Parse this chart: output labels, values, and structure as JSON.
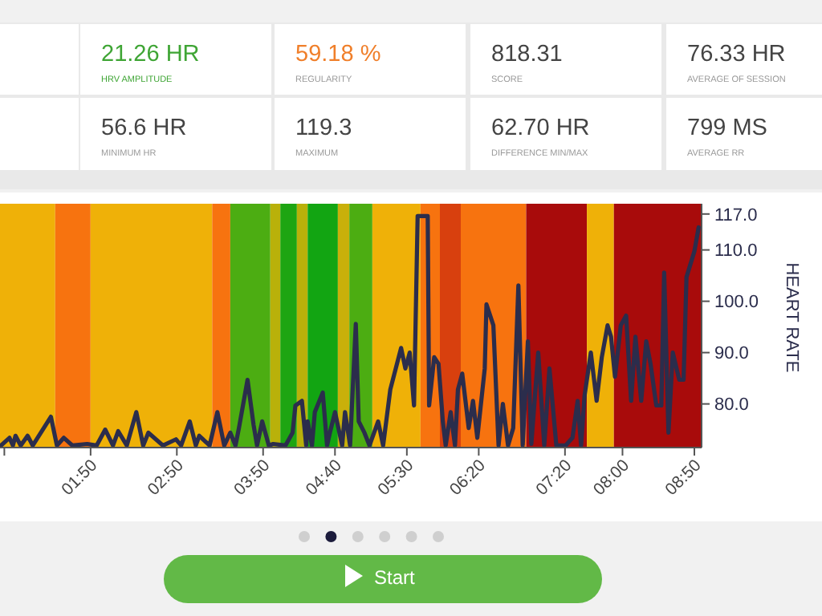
{
  "chart_data": {
    "type": "line",
    "ylabel": "HEART RATE",
    "annotations": [
      "21.26 HR",
      "HRV AMPLITUDE",
      "59.18 %",
      "REGULARITY",
      "818.31",
      "SCORE",
      "76.33 HR",
      "AVERAGE OF SESSION",
      "56.6 HR",
      "MINIMUM HR",
      "119.3",
      "MAXIMUM",
      "62.70 HR",
      "DIFFERENCE MIN/MAX",
      "799 MS",
      "AVERAGE RR",
      "Start"
    ],
    "xlim": [
      0.783,
      8.917
    ],
    "xticks": [
      {
        "value": 0.8333,
        "label": null
      },
      {
        "value": 1.8333,
        "label": "01:50"
      },
      {
        "value": 2.8333,
        "label": "02:50"
      },
      {
        "value": 3.8333,
        "label": "03:50"
      },
      {
        "value": 4.6667,
        "label": "04:40"
      },
      {
        "value": 5.5,
        "label": "05:30"
      },
      {
        "value": 6.3333,
        "label": "06:20"
      },
      {
        "value": 7.3333,
        "label": "07:20"
      },
      {
        "value": 8,
        "label": "08:00"
      },
      {
        "value": 8.8333,
        "label": "08:50"
      }
    ],
    "ylim": [
      71.5,
      119
    ],
    "yticks": [
      {
        "value": 80,
        "label": "80.0"
      },
      {
        "value": 90,
        "label": "90.0"
      },
      {
        "value": 100,
        "label": "100.0"
      },
      {
        "value": 110,
        "label": "110.0"
      },
      {
        "value": 117,
        "label": "117.0"
      }
    ],
    "grid": false,
    "marker": "none",
    "line_style": "solid",
    "bands": [
      {
        "axis": "x",
        "from": 0.783,
        "to": 1.423,
        "color": "#efb108"
      },
      {
        "axis": "x",
        "from": 1.423,
        "to": 1.833,
        "color": "#f7730f"
      },
      {
        "axis": "x",
        "from": 1.833,
        "to": 3.243,
        "color": "#efb108"
      },
      {
        "axis": "x",
        "from": 3.243,
        "to": 3.453,
        "color": "#f7730f"
      },
      {
        "axis": "x",
        "from": 3.453,
        "to": 3.917,
        "color": "#4cad12"
      },
      {
        "axis": "x",
        "from": 3.917,
        "to": 4.033,
        "color": "#b9b10a"
      },
      {
        "axis": "x",
        "from": 4.033,
        "to": 4.225,
        "color": "#1ea512"
      },
      {
        "axis": "x",
        "from": 4.225,
        "to": 4.35,
        "color": "#b9b10a"
      },
      {
        "axis": "x",
        "from": 4.35,
        "to": 4.7,
        "color": "#12a512"
      },
      {
        "axis": "x",
        "from": 4.7,
        "to": 4.833,
        "color": "#c9b00a"
      },
      {
        "axis": "x",
        "from": 4.833,
        "to": 5.1,
        "color": "#4cad12"
      },
      {
        "axis": "x",
        "from": 5.1,
        "to": 5.658,
        "color": "#efb108"
      },
      {
        "axis": "x",
        "from": 5.658,
        "to": 5.883,
        "color": "#f7730f"
      },
      {
        "axis": "x",
        "from": 5.883,
        "to": 6.125,
        "color": "#d8400e"
      },
      {
        "axis": "x",
        "from": 6.125,
        "to": 6.883,
        "color": "#f7730f"
      },
      {
        "axis": "x",
        "from": 6.883,
        "to": 7.587,
        "color": "#a80b0b"
      },
      {
        "axis": "x",
        "from": 7.587,
        "to": 7.9,
        "color": "#efb108"
      },
      {
        "axis": "x",
        "from": 7.9,
        "to": 8.917,
        "color": "#a80b0b"
      }
    ],
    "series": [
      {
        "color": "#2b2d4c",
        "x": [
          0.793,
          0.893,
          0.933,
          0.963,
          1.023,
          1.103,
          1.163,
          1.373,
          1.443,
          1.523,
          1.623,
          1.793,
          1.903,
          2.003,
          2.093,
          2.153,
          2.253,
          2.363,
          2.443,
          2.503,
          2.673,
          2.823,
          2.883,
          2.983,
          3.053,
          3.093,
          3.213,
          3.303,
          3.383,
          3.453,
          3.513,
          3.553,
          3.653,
          3.723,
          3.763,
          3.823,
          3.9,
          3.95,
          4.092,
          4.175,
          4.208,
          4.283,
          4.333,
          4.35,
          4.4,
          4.433,
          4.525,
          4.575,
          4.608,
          4.667,
          4.75,
          4.783,
          4.842,
          4.908,
          4.942,
          5.008,
          5.067,
          5.167,
          5.225,
          5.308,
          5.433,
          5.483,
          5.533,
          5.583,
          5.625,
          5.742,
          5.758,
          5.817,
          5.867,
          5.917,
          5.95,
          6.008,
          6.058,
          6.092,
          6.142,
          6.217,
          6.267,
          6.317,
          6.403,
          6.423,
          6.503,
          6.563,
          6.613,
          6.673,
          6.733,
          6.793,
          6.843,
          6.903,
          6.943,
          7.023,
          7.093,
          7.153,
          7.233,
          7.34,
          7.42,
          7.48,
          7.52,
          7.56,
          7.633,
          7.7,
          7.76,
          7.827,
          7.867,
          7.913,
          7.98,
          8.042,
          8.1,
          8.15,
          8.217,
          8.275,
          8.325,
          8.392,
          8.45,
          8.483,
          8.533,
          8.583,
          8.658,
          8.708,
          8.742,
          8.833,
          8.883
        ],
        "values": [
          71.9,
          73.4,
          71.9,
          73.8,
          71.9,
          73.8,
          71.9,
          77.5,
          71.9,
          73.4,
          71.9,
          72.2,
          71.9,
          75.0,
          71.9,
          74.7,
          71.9,
          78.4,
          71.9,
          74.4,
          71.9,
          73.1,
          71.9,
          76.6,
          71.9,
          73.8,
          71.9,
          78.4,
          71.9,
          74.4,
          71.9,
          75.3,
          84.7,
          75.9,
          71.9,
          76.6,
          71.9,
          72.2,
          71.9,
          74.4,
          79.7,
          80.6,
          71.9,
          76.6,
          71.9,
          78.4,
          82.2,
          71.9,
          74.4,
          78.4,
          71.9,
          78.4,
          71.9,
          95.6,
          76.6,
          74.4,
          71.9,
          76.6,
          71.9,
          82.8,
          90.9,
          86.9,
          90.0,
          79.7,
          116.6,
          116.6,
          79.7,
          89.1,
          87.8,
          76.6,
          71.9,
          78.4,
          71.9,
          82.8,
          85.9,
          75.3,
          80.6,
          73.4,
          86.9,
          99.4,
          95.3,
          71.9,
          80.0,
          71.9,
          75.3,
          103.1,
          71.9,
          92.2,
          72.2,
          90.0,
          71.9,
          86.9,
          71.9,
          71.9,
          73.4,
          80.6,
          71.9,
          81.6,
          90.0,
          80.6,
          89.1,
          95.3,
          93.1,
          85.3,
          95.3,
          97.2,
          80.6,
          93.1,
          80.6,
          92.2,
          87.8,
          79.7,
          79.7,
          105.6,
          74.4,
          90.0,
          84.7,
          84.7,
          104.7,
          109.7,
          114.4
        ]
      }
    ]
  }
}
